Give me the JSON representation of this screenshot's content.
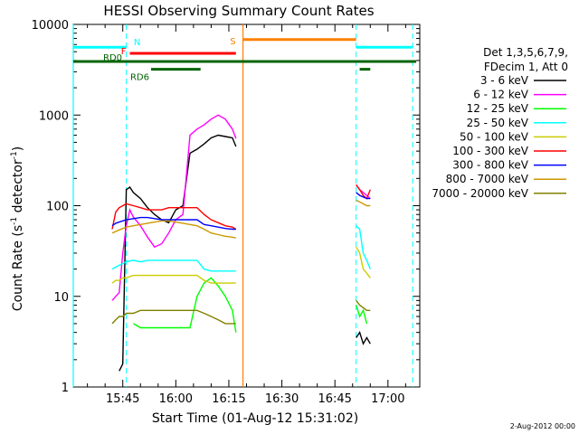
{
  "chart_data": {
    "type": "line",
    "title": "HESSI Observing Summary Count Rates",
    "xlabel": "Start Time (01-Aug-12 15:31:02)",
    "ylabel": "Count Rate (s",
    "ylabel_sup": "-1",
    "ylabel_rest": " detector",
    "ylabel_sup2": "-1",
    "ylabel_end": ")",
    "y_scale": "log",
    "ylim": [
      1,
      10000
    ],
    "xlim": [
      "15:31",
      "17:09"
    ],
    "x_ticks": [
      "15:45",
      "16:00",
      "16:15",
      "16:30",
      "16:45",
      "17:00"
    ],
    "y_ticks": [
      "1",
      "10",
      "100",
      "1000",
      "10000"
    ],
    "legend_position": "right",
    "legend_header": [
      "Det 1,3,5,6,7,9,",
      "FDecim 1, Att 0"
    ],
    "footer_date": "2-Aug-2012 00:00",
    "flags": [
      {
        "label": "N",
        "color": "#00ffff",
        "segments": [
          [
            "15:31",
            "15:46"
          ],
          [
            "16:51",
            "17:07"
          ]
        ],
        "level": 5600
      },
      {
        "label": "F",
        "color": "#ff0000",
        "segments": [
          [
            "15:47",
            "16:17"
          ]
        ],
        "level": 4800
      },
      {
        "label": "RD0",
        "color": "#006400",
        "segments": [
          [
            "15:31",
            "17:08"
          ]
        ],
        "level": 3900
      },
      {
        "label": "RD6",
        "color": "#006400",
        "segments": [
          [
            "15:53",
            "16:07"
          ]
        ],
        "level": 3200
      },
      {
        "label": "S",
        "color": "#ff8000",
        "segments": [
          [
            "16:19",
            "16:51"
          ]
        ],
        "level": 6800
      }
    ],
    "flag_extra": [
      {
        "color": "#006400",
        "segments": [
          [
            "16:52",
            "16:55"
          ]
        ],
        "level": 3200
      }
    ],
    "vlines_dashed": {
      "color": "#00ffff",
      "x": [
        "15:46",
        "16:51",
        "17:07"
      ]
    },
    "vlines_solid": [
      {
        "color": "#00ffff",
        "x": "15:31"
      },
      {
        "color": "#ff8000",
        "x": "16:19"
      }
    ],
    "series": [
      {
        "name": "3 - 6 keV",
        "color": "#000000",
        "segments": [
          {
            "x": [
              "15:44",
              "15:45",
              "15:46",
              "15:47",
              "15:48",
              "15:50",
              "15:52",
              "15:54",
              "15:56",
              "15:58",
              "16:00",
              "16:02",
              "16:04",
              "16:06",
              "16:08",
              "16:10",
              "16:12",
              "16:14",
              "16:16",
              "16:17"
            ],
            "y": [
              1.5,
              1.8,
              150,
              160,
              140,
              120,
              95,
              80,
              70,
              65,
              90,
              100,
              380,
              420,
              480,
              560,
              600,
              580,
              560,
              450
            ]
          },
          {
            "x": [
              "16:51",
              "16:52",
              "16:53",
              "16:54",
              "16:55"
            ],
            "y": [
              3.5,
              4,
              3,
              3.5,
              3
            ]
          }
        ]
      },
      {
        "name": "6 - 12 keV",
        "color": "#ff00ff",
        "segments": [
          {
            "x": [
              "15:42",
              "15:43",
              "15:44",
              "15:45",
              "15:46",
              "15:47",
              "15:48",
              "15:50",
              "15:52",
              "15:54",
              "15:56",
              "15:58",
              "16:00",
              "16:02",
              "16:04",
              "16:06",
              "16:08",
              "16:10",
              "16:12",
              "16:14",
              "16:16",
              "16:17"
            ],
            "y": [
              9,
              10,
              11,
              30,
              60,
              90,
              75,
              60,
              45,
              35,
              38,
              50,
              70,
              80,
              600,
              700,
              780,
              900,
              1000,
              900,
              700,
              550
            ]
          },
          {
            "x": [
              "16:51",
              "16:52",
              "16:53",
              "16:54",
              "16:55"
            ],
            "y": [
              170,
              150,
              140,
              130,
              120
            ]
          }
        ]
      },
      {
        "name": "12 - 25 keV",
        "color": "#00ff00",
        "segments": [
          {
            "x": [
              "15:48",
              "15:50",
              "15:52",
              "15:54",
              "15:56",
              "15:58",
              "16:00",
              "16:02",
              "16:04",
              "16:06",
              "16:08",
              "16:10",
              "16:12",
              "16:14",
              "16:16",
              "16:17"
            ],
            "y": [
              5,
              4.5,
              4.5,
              4.5,
              4.5,
              4.5,
              4.5,
              4.5,
              4.5,
              10,
              14,
              16,
              13,
              10,
              7,
              4
            ]
          },
          {
            "x": [
              "16:51",
              "16:52",
              "16:53",
              "16:54"
            ],
            "y": [
              8,
              6,
              7,
              5
            ]
          }
        ]
      },
      {
        "name": "25 - 50 keV",
        "color": "#00ffff",
        "segments": [
          {
            "x": [
              "15:42",
              "15:43",
              "15:44",
              "15:45",
              "15:46",
              "15:48",
              "15:50",
              "15:52",
              "15:54",
              "15:56",
              "15:58",
              "16:00",
              "16:02",
              "16:04",
              "16:06",
              "16:08",
              "16:10",
              "16:12",
              "16:14",
              "16:16",
              "16:17"
            ],
            "y": [
              20,
              21,
              22,
              23,
              24,
              25,
              24,
              25,
              25,
              25,
              25,
              25,
              25,
              25,
              25,
              20,
              19,
              19,
              19,
              19,
              19
            ]
          },
          {
            "x": [
              "16:51",
              "16:52",
              "16:53",
              "16:54",
              "16:55"
            ],
            "y": [
              60,
              55,
              30,
              25,
              20
            ]
          }
        ]
      },
      {
        "name": "50 - 100 keV",
        "color": "#cccc00",
        "segments": [
          {
            "x": [
              "15:42",
              "15:43",
              "15:44",
              "15:45",
              "15:46",
              "15:48",
              "15:50",
              "15:52",
              "15:54",
              "15:56",
              "15:58",
              "16:00",
              "16:02",
              "16:04",
              "16:06",
              "16:08",
              "16:10",
              "16:12",
              "16:14",
              "16:16",
              "16:17"
            ],
            "y": [
              14,
              15,
              15,
              16,
              16,
              17,
              17,
              17,
              17,
              17,
              17,
              17,
              17,
              17,
              17,
              15,
              14,
              14,
              14,
              14,
              14
            ]
          },
          {
            "x": [
              "16:51",
              "16:52",
              "16:53",
              "16:54",
              "16:55"
            ],
            "y": [
              35,
              30,
              20,
              18,
              16
            ]
          }
        ]
      },
      {
        "name": "100 - 300 keV",
        "color": "#ff0000",
        "segments": [
          {
            "x": [
              "15:42",
              "15:43",
              "15:44",
              "15:45",
              "15:46",
              "15:48",
              "15:50",
              "15:52",
              "15:54",
              "15:56",
              "15:58",
              "16:00",
              "16:02",
              "16:04",
              "16:06",
              "16:08",
              "16:10",
              "16:12",
              "16:14",
              "16:16",
              "16:17"
            ],
            "y": [
              55,
              85,
              95,
              100,
              105,
              100,
              95,
              90,
              90,
              90,
              95,
              95,
              95,
              95,
              95,
              80,
              70,
              65,
              60,
              58,
              55
            ]
          },
          {
            "x": [
              "16:51",
              "16:52",
              "16:53",
              "16:54",
              "16:55"
            ],
            "y": [
              170,
              150,
              130,
              120,
              150
            ]
          }
        ]
      },
      {
        "name": "300 - 800 keV",
        "color": "#0000ff",
        "segments": [
          {
            "x": [
              "15:42",
              "15:43",
              "15:44",
              "15:45",
              "15:46",
              "15:48",
              "15:50",
              "15:52",
              "15:54",
              "15:56",
              "15:58",
              "16:00",
              "16:02",
              "16:04",
              "16:06",
              "16:08",
              "16:10",
              "16:12",
              "16:14",
              "16:16",
              "16:17"
            ],
            "y": [
              60,
              64,
              66,
              68,
              70,
              72,
              74,
              74,
              72,
              70,
              70,
              70,
              70,
              70,
              70,
              62,
              60,
              58,
              56,
              55,
              55
            ]
          },
          {
            "x": [
              "16:51",
              "16:52",
              "16:53",
              "16:54",
              "16:55"
            ],
            "y": [
              140,
              130,
              125,
              120,
              120
            ]
          }
        ]
      },
      {
        "name": "800 - 7000 keV",
        "color": "#cc9900",
        "segments": [
          {
            "x": [
              "15:42",
              "15:43",
              "15:44",
              "15:45",
              "15:46",
              "15:48",
              "15:50",
              "15:52",
              "15:54",
              "15:56",
              "15:58",
              "16:00",
              "16:02",
              "16:04",
              "16:06",
              "16:08",
              "16:10",
              "16:12",
              "16:14",
              "16:16",
              "16:17"
            ],
            "y": [
              50,
              52,
              54,
              56,
              58,
              60,
              62,
              64,
              66,
              68,
              68,
              66,
              64,
              62,
              60,
              55,
              50,
              48,
              46,
              45,
              44
            ]
          },
          {
            "x": [
              "16:51",
              "16:52",
              "16:53",
              "16:54",
              "16:55"
            ],
            "y": [
              115,
              110,
              105,
              100,
              100
            ]
          }
        ]
      },
      {
        "name": "7000 - 20000 keV",
        "color": "#808000",
        "segments": [
          {
            "x": [
              "15:42",
              "15:43",
              "15:44",
              "15:45",
              "15:46",
              "15:48",
              "15:50",
              "15:52",
              "15:54",
              "15:56",
              "15:58",
              "16:00",
              "16:02",
              "16:04",
              "16:06",
              "16:08",
              "16:10",
              "16:12",
              "16:14",
              "16:16",
              "16:17"
            ],
            "y": [
              5,
              5.5,
              6,
              6,
              6.5,
              6.5,
              7,
              7,
              7,
              7,
              7,
              7,
              7,
              7,
              7,
              6.5,
              6,
              5.5,
              5,
              5,
              5
            ]
          },
          {
            "x": [
              "16:51",
              "16:52",
              "16:53",
              "16:54",
              "16:55"
            ],
            "y": [
              9,
              8,
              7.5,
              7,
              7
            ]
          }
        ]
      }
    ]
  }
}
